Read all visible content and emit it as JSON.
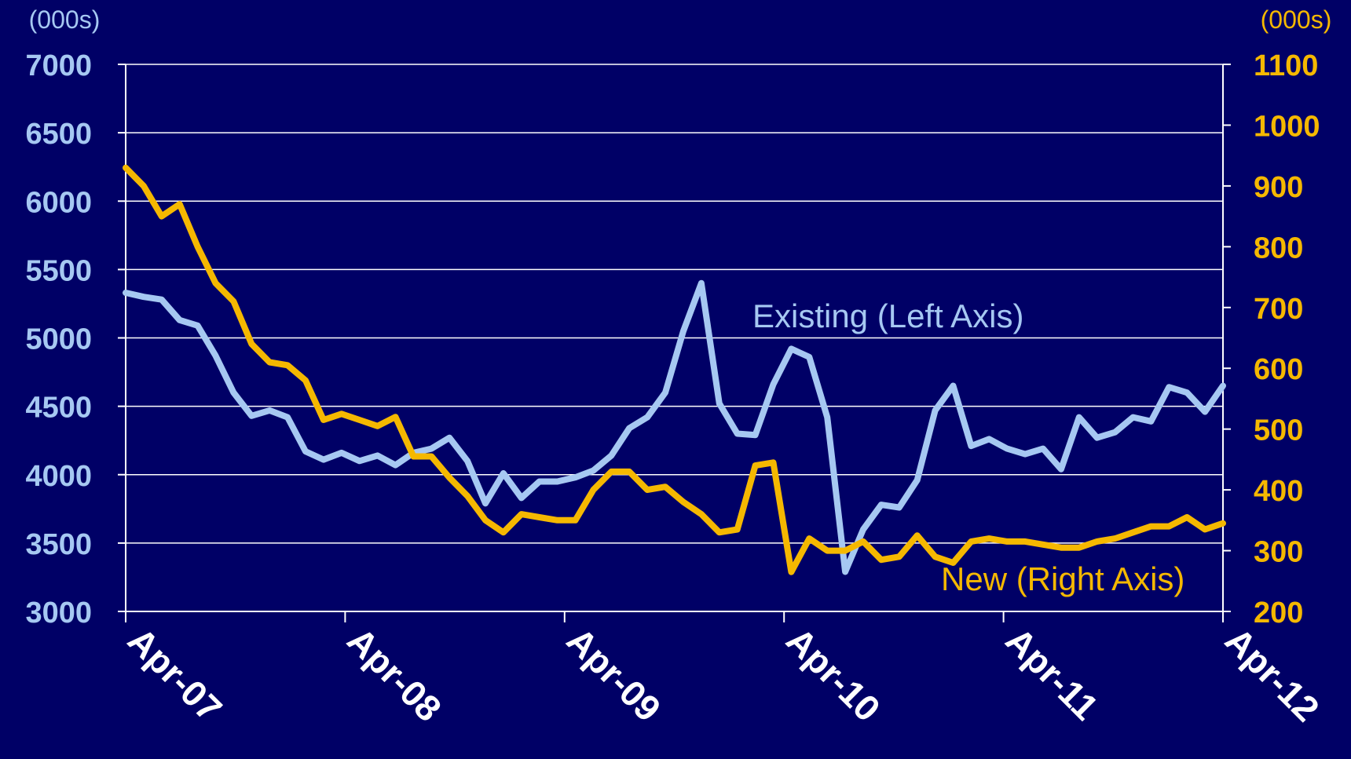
{
  "chart_data": {
    "type": "line",
    "colors": {
      "background": "#000066",
      "left_axis": "#a6c8f2",
      "right_axis": "#f5b800",
      "grid": "#ffffff"
    },
    "left_axis": {
      "unit_label": "(000s)",
      "ylim": [
        3000,
        7000
      ],
      "ticks": [
        "3000",
        "3500",
        "4000",
        "4500",
        "5000",
        "5500",
        "6000",
        "6500",
        "7000"
      ]
    },
    "right_axis": {
      "unit_label": "(000s)",
      "ylim": [
        200,
        1100
      ],
      "ticks": [
        "200",
        "300",
        "400",
        "500",
        "600",
        "700",
        "800",
        "900",
        "1000",
        "1100"
      ]
    },
    "x_ticks": [
      "Apr-07",
      "Apr-08",
      "Apr-09",
      "Apr-10",
      "Apr-11",
      "Apr-12"
    ],
    "x_range_months": [
      0,
      60
    ],
    "grid": true,
    "series": [
      {
        "name": "Existing (Left Axis)",
        "axis": "left",
        "color": "#a6c8f2",
        "values": [
          5330,
          5300,
          5280,
          5130,
          5090,
          4870,
          4600,
          4430,
          4470,
          4420,
          4170,
          4110,
          4160,
          4100,
          4140,
          4070,
          4160,
          4190,
          4270,
          4100,
          3790,
          4010,
          3830,
          3950,
          3950,
          3980,
          4030,
          4140,
          4340,
          4420,
          4600,
          5050,
          5400,
          4520,
          4300,
          4290,
          4660,
          4920,
          4860,
          4420,
          3290,
          3600,
          3780,
          3760,
          3960,
          4470,
          4650,
          4210,
          4260,
          4190,
          4150,
          4190,
          4040,
          4420,
          4270,
          4310,
          4420,
          4390,
          4640,
          4600,
          4460,
          4650
        ]
      },
      {
        "name": "New (Right Axis)",
        "axis": "right",
        "color": "#f5b800",
        "values": [
          930,
          900,
          850,
          870,
          800,
          740,
          710,
          640,
          610,
          605,
          580,
          515,
          525,
          515,
          505,
          520,
          455,
          455,
          420,
          390,
          350,
          330,
          360,
          355,
          350,
          350,
          400,
          430,
          430,
          400,
          405,
          380,
          360,
          330,
          335,
          440,
          445,
          265,
          320,
          300,
          300,
          315,
          285,
          290,
          325,
          290,
          280,
          315,
          320,
          315,
          315,
          310,
          305,
          305,
          315,
          320,
          330,
          340,
          340,
          355,
          335,
          345
        ]
      }
    ]
  }
}
